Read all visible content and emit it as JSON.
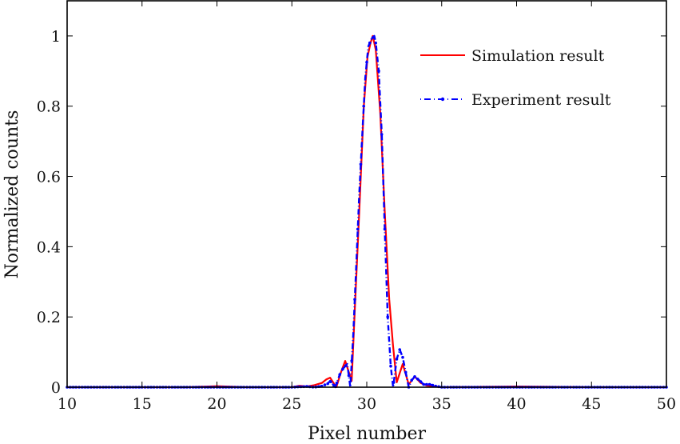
{
  "chart_data": {
    "type": "line",
    "title": "",
    "xlabel": "Pixel number",
    "ylabel": "Normalized counts",
    "xlim": [
      10,
      50
    ],
    "ylim": [
      0,
      1.1
    ],
    "xticks": [
      10,
      15,
      20,
      25,
      30,
      35,
      40,
      45,
      50
    ],
    "yticks": [
      0,
      0.2,
      0.4,
      0.6,
      0.8,
      1
    ],
    "xtick_labels": [
      "10",
      "15",
      "20",
      "25",
      "30",
      "35",
      "40",
      "45",
      "50"
    ],
    "ytick_labels": [
      "0",
      "0.2",
      "0.4",
      "0.6",
      "0.8",
      "1"
    ],
    "grid": false,
    "legend_position": "top-right",
    "series": [
      {
        "name": "Simulation result",
        "color": "#ff0000",
        "style": "solid",
        "x": [
          10,
          18,
          20,
          22,
          25,
          25.5,
          26,
          26.5,
          27,
          27.3,
          27.55,
          27.97,
          28.3,
          28.56,
          28.99,
          29.2,
          29.5,
          29.8,
          30.05,
          30.25,
          30.4,
          30.6,
          30.9,
          31.2,
          31.5,
          31.75,
          32.0,
          32.4,
          32.8,
          33.2,
          33.6,
          34.0,
          34.5,
          35,
          40,
          45,
          50
        ],
        "y": [
          0.0,
          0.0,
          0.003,
          0.0,
          0.0,
          0.004,
          0.002,
          0.006,
          0.012,
          0.022,
          0.027,
          0.0,
          0.045,
          0.075,
          0.018,
          0.22,
          0.5,
          0.8,
          0.94,
          0.98,
          1.0,
          0.96,
          0.78,
          0.5,
          0.25,
          0.12,
          0.014,
          0.066,
          0.008,
          0.03,
          0.012,
          0.005,
          0.002,
          0.0,
          0.002,
          0.0,
          0.0
        ]
      },
      {
        "name": "Experiment result",
        "color": "#0000ff",
        "style": "dash-dot-marker",
        "x": [
          10,
          25,
          26,
          26.5,
          27,
          27.4,
          27.55,
          27.9,
          28.2,
          28.4,
          28.7,
          28.9,
          29.1,
          29.3,
          29.5,
          29.7,
          29.9,
          30.1,
          30.3,
          30.5,
          30.6,
          30.8,
          31.0,
          31.2,
          31.4,
          31.6,
          31.76,
          32.0,
          32.2,
          32.4,
          32.8,
          33.0,
          33.2,
          33.5,
          33.8,
          34.2,
          34.6,
          35,
          50
        ],
        "y": [
          0.0,
          0.0,
          0.002,
          0.0,
          0.003,
          0.01,
          0.018,
          0.0,
          0.036,
          0.052,
          0.066,
          0.0,
          0.15,
          0.35,
          0.55,
          0.72,
          0.88,
          0.97,
          0.99,
          1.0,
          0.98,
          0.9,
          0.72,
          0.45,
          0.2,
          0.06,
          0.0,
          0.08,
          0.107,
          0.085,
          0.0,
          0.02,
          0.03,
          0.02,
          0.008,
          0.008,
          0.003,
          0.0,
          0.0
        ]
      }
    ]
  }
}
